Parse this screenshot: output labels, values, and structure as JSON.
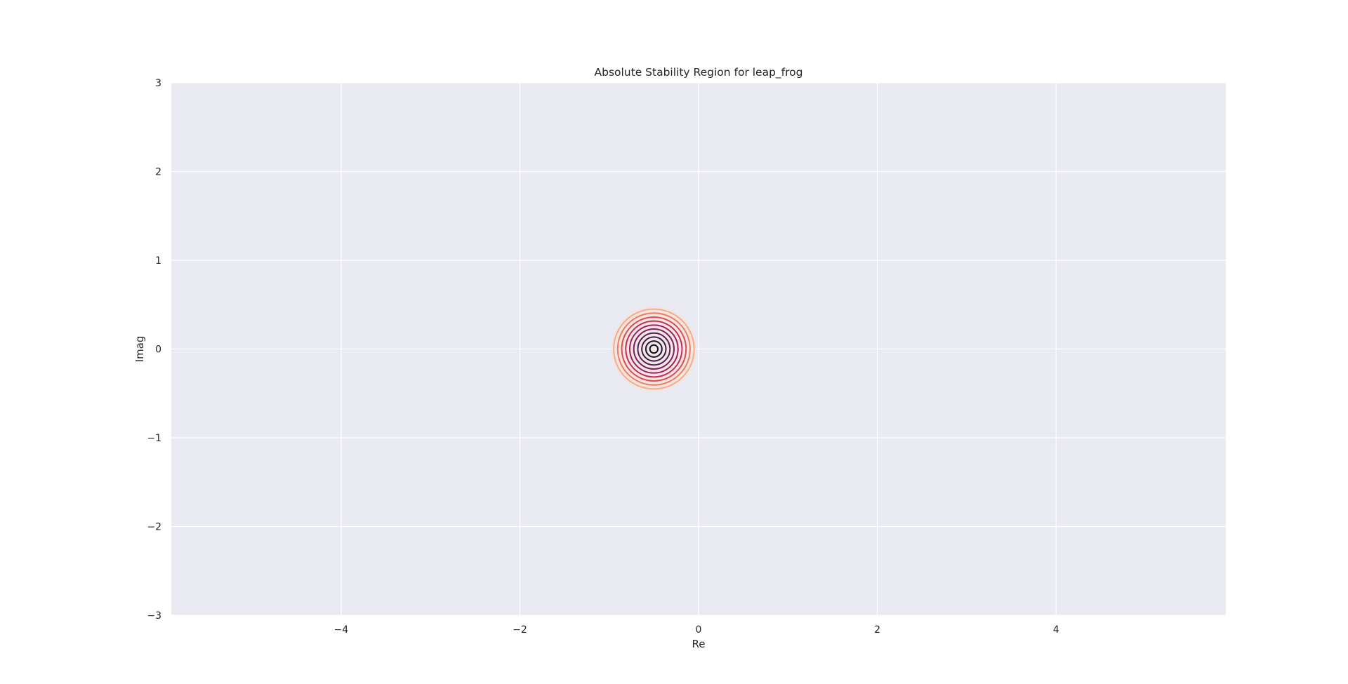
{
  "chart_data": {
    "type": "contour",
    "title": "Absolute Stability Region for leap_frog",
    "xlabel": "Re",
    "ylabel": "Imag",
    "xlim": [
      -5.9,
      5.9
    ],
    "ylim": [
      -3,
      3
    ],
    "xticks": [
      -4,
      -2,
      0,
      2,
      4
    ],
    "yticks": [
      -3,
      -2,
      -1,
      0,
      1,
      2,
      3
    ],
    "xtick_labels": [
      "−4",
      "−2",
      "0",
      "2",
      "4"
    ],
    "ytick_labels": [
      "−3",
      "−2",
      "−1",
      "0",
      "1",
      "2",
      "3"
    ],
    "grid": true,
    "legend": "none",
    "colors": {
      "plot_background": "#eaeaf2",
      "grid": "#ffffff",
      "halo": "#f8e1d6"
    },
    "contours": {
      "center": [
        -0.5,
        0
      ],
      "halo_radius": 0.48,
      "levels": [
        {
          "radius": 0.045,
          "color": "#0b0924"
        },
        {
          "radius": 0.09,
          "color": "#221532"
        },
        {
          "radius": 0.135,
          "color": "#3b1a4a"
        },
        {
          "radius": 0.18,
          "color": "#5b1e5c"
        },
        {
          "radius": 0.225,
          "color": "#7e1f63"
        },
        {
          "radius": 0.27,
          "color": "#a21e63"
        },
        {
          "radius": 0.315,
          "color": "#c72a5c"
        },
        {
          "radius": 0.36,
          "color": "#e14a50"
        },
        {
          "radius": 0.405,
          "color": "#ef7d62"
        },
        {
          "radius": 0.45,
          "color": "#f5ac8a"
        }
      ]
    }
  }
}
